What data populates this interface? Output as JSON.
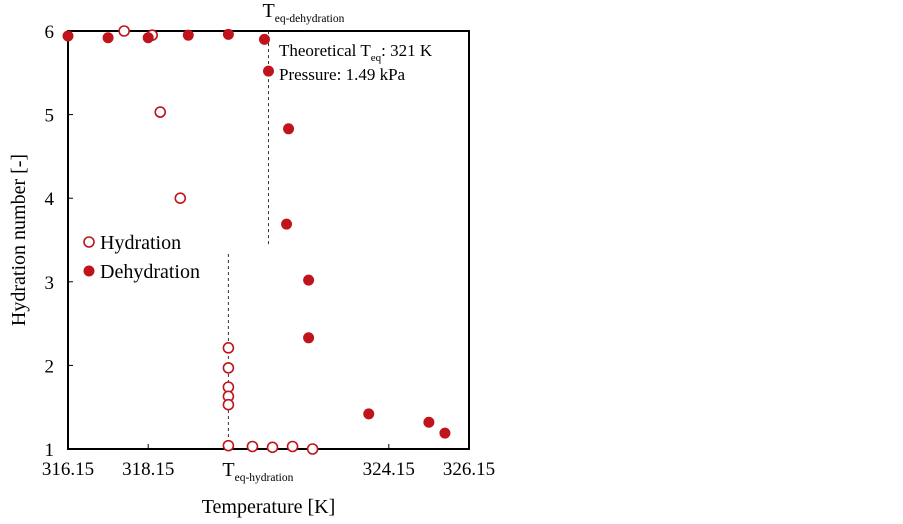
{
  "chart_data": {
    "type": "scatter",
    "xlabel": "Temperature [K]",
    "ylabel": "Hydration number [-]",
    "xlim": [
      316.15,
      326.15
    ],
    "ylim": [
      1,
      6
    ],
    "x_ticks": [
      "316.15",
      "318.15",
      "324.15",
      "326.15"
    ],
    "y_ticks": [
      "1",
      "2",
      "3",
      "4",
      "5",
      "6"
    ],
    "grid": false,
    "legend_position": "left",
    "colors": {
      "marker": "#c0141c",
      "axis": "#000000"
    },
    "series": [
      {
        "name": "Hydration",
        "marker": "open-circle",
        "points": [
          {
            "x": 317.55,
            "y": 6.0
          },
          {
            "x": 318.25,
            "y": 5.95
          },
          {
            "x": 318.45,
            "y": 5.03
          },
          {
            "x": 318.95,
            "y": 4.0
          },
          {
            "x": 320.15,
            "y": 2.21
          },
          {
            "x": 320.15,
            "y": 1.97
          },
          {
            "x": 320.15,
            "y": 1.74
          },
          {
            "x": 320.15,
            "y": 1.63
          },
          {
            "x": 320.15,
            "y": 1.53
          },
          {
            "x": 320.15,
            "y": 1.04
          },
          {
            "x": 320.75,
            "y": 1.03
          },
          {
            "x": 321.25,
            "y": 1.02
          },
          {
            "x": 321.75,
            "y": 1.03
          },
          {
            "x": 322.25,
            "y": 1.0
          }
        ]
      },
      {
        "name": "Dehydration",
        "marker": "filled-circle",
        "points": [
          {
            "x": 316.15,
            "y": 5.94
          },
          {
            "x": 317.15,
            "y": 5.92
          },
          {
            "x": 318.15,
            "y": 5.92
          },
          {
            "x": 319.15,
            "y": 5.95
          },
          {
            "x": 320.15,
            "y": 5.96
          },
          {
            "x": 321.05,
            "y": 5.9
          },
          {
            "x": 321.15,
            "y": 5.52
          },
          {
            "x": 321.65,
            "y": 4.83
          },
          {
            "x": 321.6,
            "y": 3.69
          },
          {
            "x": 322.15,
            "y": 3.02
          },
          {
            "x": 322.15,
            "y": 2.33
          },
          {
            "x": 323.65,
            "y": 1.42
          },
          {
            "x": 325.15,
            "y": 1.32
          },
          {
            "x": 325.55,
            "y": 1.19
          }
        ]
      }
    ],
    "reference_lines": [
      {
        "x": 320.15,
        "y_from": 1.0,
        "y_to": 3.35,
        "label_main": "T",
        "label_sub": "eq-hydration",
        "label_position": "below-axis"
      },
      {
        "x": 321.15,
        "y_from": 3.45,
        "y_to": 6.0,
        "label_main": "T",
        "label_sub": "eq-dehydration",
        "label_position": "above-plot"
      }
    ],
    "annotations": [
      {
        "prefix": "Theoretical T",
        "sub": "eq",
        "suffix": ": 321 K"
      },
      {
        "text": "Pressure: 1.49 kPa"
      }
    ]
  }
}
